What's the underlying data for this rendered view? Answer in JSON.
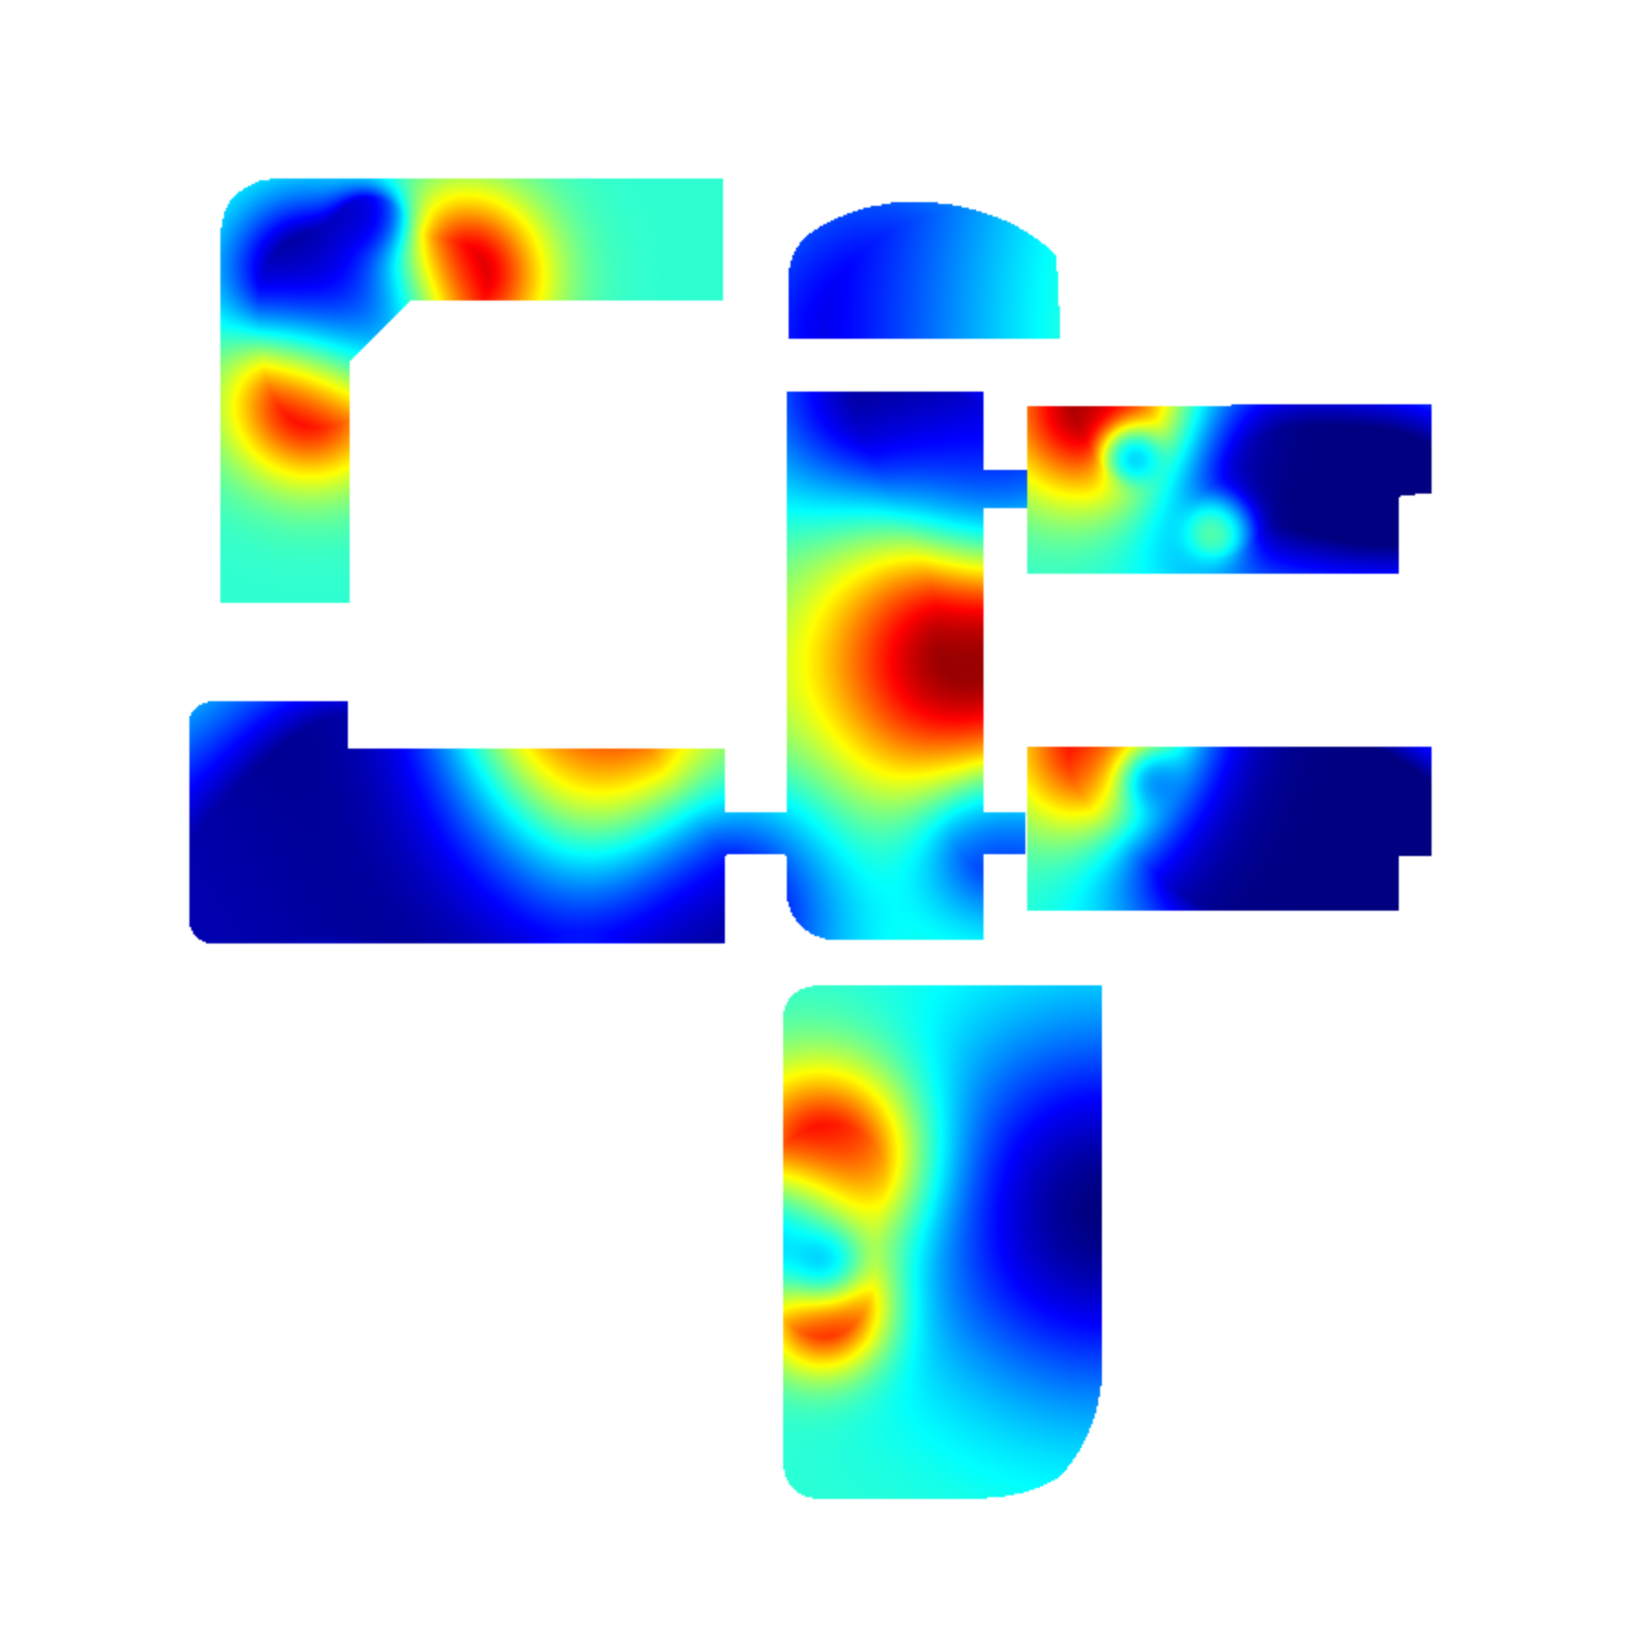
{
  "chart_data": {
    "type": "heatmap",
    "colormap": "jet",
    "background": "#ffffff",
    "value_range": [
      0,
      1
    ],
    "grid": false,
    "legend": "none",
    "rooms": [
      {
        "name": "room-top-left",
        "hotspots": [
          {
            "v": 1.0,
            "s": 1.0
          },
          {
            "v": 1.0,
            "s": 1.0
          },
          {
            "v": 0.0,
            "s": 1.0
          },
          {
            "v": 0.0,
            "s": 0.6
          },
          {
            "v": 0.0,
            "s": 1.0
          }
        ]
      },
      {
        "name": "room-top-center",
        "hotspots": [
          {
            "v": 0.02,
            "s": 1.0
          },
          {
            "v": 0.6,
            "s": 1.0
          }
        ]
      },
      {
        "name": "room-middle-column",
        "hotspots": [
          {
            "v": 0.0,
            "s": 1.0
          },
          {
            "v": 1.0,
            "s": 1.0
          },
          {
            "v": 0.05,
            "s": 1.0
          },
          {
            "v": 0.05,
            "s": 1.0
          }
        ]
      },
      {
        "name": "room-right-top",
        "hotspots": [
          {
            "v": 1.0,
            "s": 1.0
          },
          {
            "v": 0.0,
            "s": 0.6
          },
          {
            "v": 0.0,
            "s": 1.0
          },
          {
            "v": 0.72,
            "s": 0.6
          },
          {
            "v": 0.0,
            "s": 1.0
          }
        ]
      },
      {
        "name": "room-right-bottom",
        "hotspots": [
          {
            "v": 1.0,
            "s": 1.0
          },
          {
            "v": 0.0,
            "s": 0.6
          },
          {
            "v": 0.0,
            "s": 1.0
          },
          {
            "v": 0.0,
            "s": 1.0
          },
          {
            "v": 0.0,
            "s": 1.0
          }
        ]
      },
      {
        "name": "room-bottom-left",
        "hotspots": [
          {
            "v": 1.0,
            "s": 1.0
          },
          {
            "v": 0.0,
            "s": 1.0
          },
          {
            "v": 0.0,
            "s": 1.0
          },
          {
            "v": 0.0,
            "s": 1.0
          },
          {
            "v": 0.05,
            "s": 1.0
          }
        ]
      },
      {
        "name": "room-bottom-center",
        "hotspots": [
          {
            "v": 1.0,
            "s": 1.0
          },
          {
            "v": 1.0,
            "s": 0.8
          },
          {
            "v": 0.0,
            "s": 0.6
          },
          {
            "v": 0.0,
            "s": 1.0
          },
          {
            "v": 0.0,
            "s": 1.0
          }
        ]
      }
    ]
  }
}
